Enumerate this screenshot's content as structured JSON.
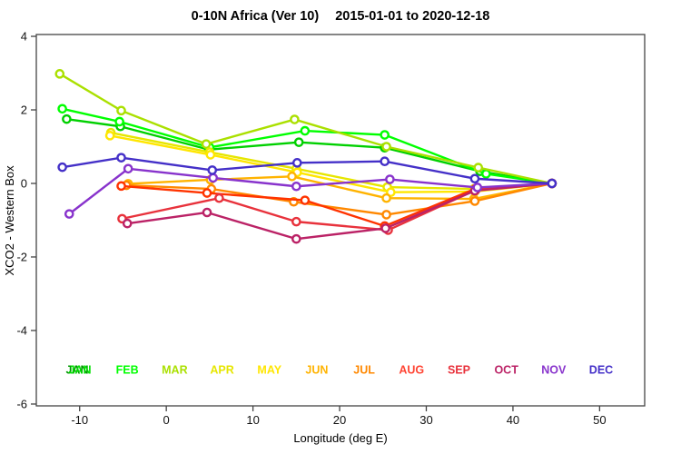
{
  "window": {
    "title": "0-10N Africa (Ver 10)   2015-01-01 to 2020-12-18"
  },
  "chart_data": {
    "type": "line",
    "title": "0-10N Africa (Ver 10)   2015-01-01 to 2020-12-18",
    "title_parts": [
      "0-10N Africa (Ver 10)",
      "2015-01-01 to 2020-12-18"
    ],
    "xlabel": "Longitude (deg E)",
    "ylabel": "XCO2 - Western Box",
    "xlim": [
      -15,
      55.2
    ],
    "ylim": [
      -6.05,
      4.05
    ],
    "x_ticks": [
      -10,
      0,
      10,
      20,
      30,
      40,
      50
    ],
    "y_ticks": [
      4,
      2,
      0,
      -2,
      -4,
      -6
    ],
    "grid": false,
    "marker": "open-circle",
    "axis_color": "#444444",
    "legend_position": "bottom-inside-row",
    "series": [
      {
        "name": "JAN",
        "color": "#00d000",
        "points": [
          [
            -11.5,
            1.75
          ],
          [
            -5.3,
            1.55
          ],
          [
            4.9,
            0.92
          ],
          [
            15.3,
            1.12
          ],
          [
            25.2,
            0.97
          ],
          [
            36.2,
            0.33
          ],
          [
            44.5,
            0.0
          ]
        ]
      },
      {
        "name": "FEB",
        "color": "#00ff00",
        "points": [
          [
            -12.0,
            2.03
          ],
          [
            -5.4,
            1.68
          ],
          [
            5.0,
            0.98
          ],
          [
            16.0,
            1.43
          ],
          [
            25.2,
            1.32
          ],
          [
            36.9,
            0.26
          ],
          [
            44.5,
            0.0
          ]
        ]
      },
      {
        "name": "MAR",
        "color": "#aae000",
        "points": [
          [
            -12.3,
            2.98
          ],
          [
            -5.2,
            1.98
          ],
          [
            4.6,
            1.07
          ],
          [
            14.8,
            1.74
          ],
          [
            25.4,
            1.0
          ],
          [
            36.0,
            0.43
          ],
          [
            44.5,
            0.0
          ]
        ]
      },
      {
        "name": "APR",
        "color": "#e6e600",
        "points": [
          [
            -6.4,
            1.38
          ],
          [
            5.0,
            0.85
          ],
          [
            15.0,
            0.4
          ],
          [
            25.5,
            -0.1
          ],
          [
            35.5,
            -0.15
          ],
          [
            44.5,
            0.0
          ]
        ]
      },
      {
        "name": "MAY",
        "color": "#ffe600",
        "points": [
          [
            -6.5,
            1.3
          ],
          [
            5.1,
            0.78
          ],
          [
            15.1,
            0.3
          ],
          [
            25.9,
            -0.24
          ],
          [
            35.6,
            -0.22
          ],
          [
            44.5,
            0.0
          ]
        ]
      },
      {
        "name": "JUN",
        "color": "#ffb300",
        "points": [
          [
            -4.4,
            -0.01
          ],
          [
            5.1,
            0.1
          ],
          [
            14.5,
            0.19
          ],
          [
            25.4,
            -0.4
          ],
          [
            35.5,
            -0.42
          ],
          [
            44.5,
            0.0
          ]
        ]
      },
      {
        "name": "JUL",
        "color": "#ff8800",
        "points": [
          [
            -4.6,
            -0.05
          ],
          [
            5.2,
            -0.15
          ],
          [
            14.7,
            -0.5
          ],
          [
            25.4,
            -0.85
          ],
          [
            35.6,
            -0.48
          ],
          [
            44.5,
            0.0
          ]
        ]
      },
      {
        "name": "AUG",
        "color": "#ff3300",
        "points": [
          [
            -5.2,
            -0.07
          ],
          [
            4.7,
            -0.26
          ],
          [
            16.0,
            -0.46
          ],
          [
            25.2,
            -1.16
          ],
          [
            35.7,
            -0.14
          ],
          [
            44.5,
            0.0
          ]
        ]
      },
      {
        "name": "SEP",
        "color": "#e8323c",
        "points": [
          [
            -5.1,
            -0.96
          ],
          [
            6.1,
            -0.4
          ],
          [
            15.0,
            -1.04
          ],
          [
            25.6,
            -1.27
          ],
          [
            35.7,
            -0.18
          ],
          [
            44.5,
            0.0
          ]
        ]
      },
      {
        "name": "OCT",
        "color": "#bb2266",
        "points": [
          [
            -4.5,
            -1.09
          ],
          [
            4.7,
            -0.79
          ],
          [
            15.0,
            -1.51
          ],
          [
            25.3,
            -1.22
          ],
          [
            35.6,
            -0.2
          ],
          [
            44.5,
            0.0
          ]
        ]
      },
      {
        "name": "NOV",
        "color": "#8833cc",
        "points": [
          [
            -11.2,
            -0.83
          ],
          [
            -4.4,
            0.4
          ],
          [
            5.4,
            0.15
          ],
          [
            15.0,
            -0.08
          ],
          [
            25.8,
            0.11
          ],
          [
            35.9,
            -0.11
          ],
          [
            44.5,
            0.0
          ]
        ]
      },
      {
        "name": "DEC",
        "color": "#4430c8",
        "points": [
          [
            -12.0,
            0.44
          ],
          [
            -5.2,
            0.7
          ],
          [
            5.3,
            0.36
          ],
          [
            15.1,
            0.56
          ],
          [
            25.2,
            0.6
          ],
          [
            35.6,
            0.13
          ],
          [
            44.5,
            0.0
          ]
        ]
      }
    ],
    "month_labels": [
      {
        "label": "JAN",
        "color": "#00e000",
        "double_printed": true,
        "shadow_color": "#009900"
      },
      {
        "label": "FEB",
        "color": "#00ff00"
      },
      {
        "label": "MAR",
        "color": "#aae000"
      },
      {
        "label": "APR",
        "color": "#e6e600"
      },
      {
        "label": "MAY",
        "color": "#ffe600"
      },
      {
        "label": "JUN",
        "color": "#ffb300"
      },
      {
        "label": "JUL",
        "color": "#ff8800"
      },
      {
        "label": "AUG",
        "color": "#ff4433"
      },
      {
        "label": "SEP",
        "color": "#e8323c"
      },
      {
        "label": "OCT",
        "color": "#bb2266"
      },
      {
        "label": "NOV",
        "color": "#8833cc"
      },
      {
        "label": "DEC",
        "color": "#4430c8"
      }
    ]
  }
}
